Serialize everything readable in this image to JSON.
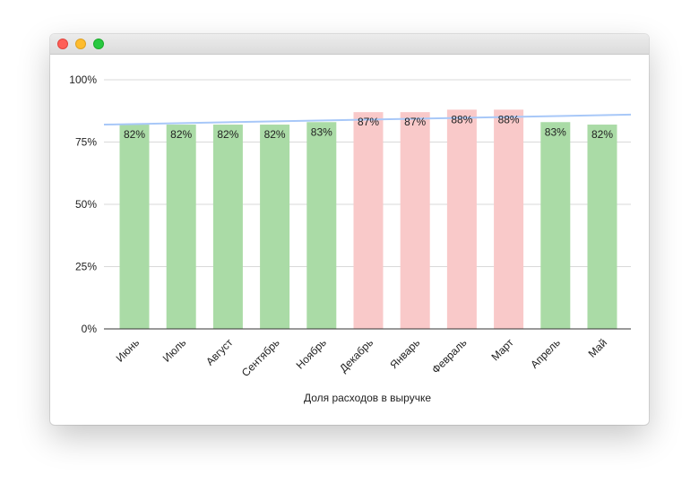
{
  "window": {
    "controls": [
      "close",
      "minimize",
      "zoom"
    ]
  },
  "chart_data": {
    "type": "bar",
    "title": "",
    "xlabel": "Доля расходов в выручке",
    "ylabel": "",
    "categories": [
      "Июнь",
      "Июль",
      "Август",
      "Сентябрь",
      "Ноябрь",
      "Декабрь",
      "Январь",
      "Февраль",
      "Март",
      "Апрель",
      "Май"
    ],
    "values": [
      82,
      82,
      82,
      82,
      83,
      87,
      87,
      88,
      88,
      83,
      82
    ],
    "value_labels": [
      "82%",
      "82%",
      "82%",
      "82%",
      "83%",
      "87%",
      "87%",
      "88%",
      "88%",
      "83%",
      "82%"
    ],
    "bar_colors": [
      "#aadba6",
      "#aadba6",
      "#aadba6",
      "#aadba6",
      "#aadba6",
      "#f9c9c9",
      "#f9c9c9",
      "#f9c9c9",
      "#f9c9c9",
      "#aadba6",
      "#aadba6"
    ],
    "ylim": [
      0,
      100
    ],
    "yticks": [
      0,
      25,
      50,
      75,
      100
    ],
    "ytick_labels": [
      "0%",
      "25%",
      "50%",
      "75%",
      "100%"
    ],
    "grid": true,
    "trendline": {
      "color": "#a8c8f8",
      "start_value": 82,
      "end_value": 86
    },
    "colors": {
      "grid": "#d9d9d9",
      "axis": "#333333",
      "text": "#222222"
    }
  }
}
